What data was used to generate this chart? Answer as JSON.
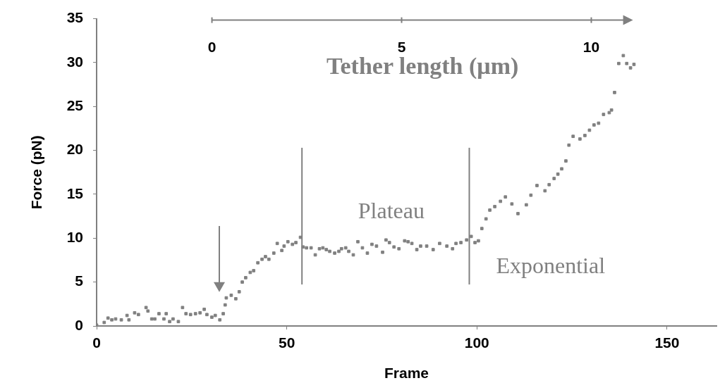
{
  "chart_data": {
    "type": "scatter",
    "xlabel": "Frame",
    "ylabel": "Force (pN)",
    "x2label": "Tether length (μm)",
    "xlim": [
      0,
      163
    ],
    "xticks": [
      0,
      50,
      100,
      150
    ],
    "ylim": [
      0,
      35
    ],
    "yticks": [
      0,
      5,
      10,
      15,
      20,
      25,
      30,
      35
    ],
    "x2lim": [
      -3.04,
      13.3
    ],
    "x2ticks": [
      0,
      5,
      10
    ],
    "marker": "square",
    "grid": false,
    "legend": false,
    "series": [
      {
        "color": "#808080",
        "x": [
          0,
          2,
          3,
          4,
          5,
          6.5,
          8,
          8.5,
          10,
          11,
          13,
          13.5,
          14.5,
          15.3,
          16.4,
          17.7,
          18.3,
          19.2,
          20.1,
          21.5,
          22.6,
          23.5,
          24.7,
          26,
          27.2,
          28.3,
          29,
          30.3,
          31.2,
          32.4,
          33.3,
          33.8,
          34.1,
          35.4,
          36.6,
          37.5,
          38.3,
          39.2,
          40.4,
          41.3,
          42.4,
          43.5,
          44.4,
          45.3,
          46.6,
          47.5,
          48.7,
          49.3,
          50.3,
          51.5,
          52.4,
          53.6,
          54.3,
          55.2,
          56.4,
          57.5,
          58.6,
          59.5,
          60.4,
          61.3,
          62.6,
          63.7,
          64.4,
          65.5,
          66.3,
          67.5,
          68.7,
          69.9,
          71.2,
          72.4,
          73.6,
          75.2,
          76.1,
          77,
          78.2,
          79.5,
          81,
          81.9,
          82.9,
          84.2,
          85.2,
          86.8,
          88.5,
          90.2,
          92.1,
          93.6,
          94.5,
          95.8,
          97.3,
          98.5,
          99.5,
          100.4,
          101.3,
          102.4,
          103.4,
          104.7,
          106.2,
          107.5,
          109.2,
          110.8,
          113,
          114.2,
          115.8,
          117.9,
          119,
          120.3,
          121.3,
          122.3,
          123.4,
          124.2,
          125.3,
          127.1,
          128.4,
          129.6,
          130.8,
          132,
          133.3,
          134.8,
          135.4,
          136.2,
          137.3,
          138.5,
          139.4,
          140.4,
          141.3
        ],
        "values": [
          0.1,
          0.4,
          0.9,
          0.7,
          0.8,
          0.7,
          1.2,
          0.7,
          1.5,
          1.3,
          2.1,
          1.7,
          0.8,
          0.8,
          1.4,
          0.8,
          1.4,
          0.5,
          0.8,
          0.5,
          2.1,
          1.4,
          1.3,
          1.4,
          1.5,
          1.9,
          1.3,
          1,
          1.2,
          0.7,
          1.4,
          2.4,
          3.2,
          3.5,
          3.1,
          3.9,
          5,
          5.5,
          6.1,
          6.3,
          7.2,
          7.6,
          7.9,
          7.6,
          8.3,
          9.4,
          8.6,
          9.1,
          9.6,
          9.3,
          9.5,
          10.1,
          9,
          8.9,
          8.9,
          8.1,
          8.8,
          8.9,
          8.7,
          8.5,
          8.3,
          8.5,
          8.8,
          8.9,
          8.5,
          8.1,
          9.6,
          8.9,
          8.3,
          9.3,
          9.1,
          8.4,
          9.8,
          9.5,
          9,
          8.8,
          9.7,
          9.6,
          9.4,
          8.7,
          9.1,
          9.1,
          8.7,
          9.4,
          9.1,
          8.8,
          9.4,
          9.5,
          9.8,
          10.2,
          9.5,
          9.7,
          11.1,
          12.2,
          13.2,
          13.6,
          14.2,
          14.7,
          13.9,
          12.8,
          13.8,
          14.9,
          16,
          15.4,
          16.1,
          16.8,
          17.3,
          17.9,
          18.8,
          20.6,
          21.6,
          21.3,
          21.7,
          22.3,
          22.9,
          23.1,
          24.1,
          24.3,
          24.6,
          26.6,
          29.9,
          30.8,
          29.9,
          29.4,
          29.8
        ]
      }
    ],
    "ref_lines": [
      {
        "axis": "x",
        "value": 54,
        "color": "#808080"
      },
      {
        "axis": "x",
        "value": 98,
        "color": "#808080"
      }
    ],
    "annotations": [
      "Plateau",
      "Exponential"
    ]
  }
}
